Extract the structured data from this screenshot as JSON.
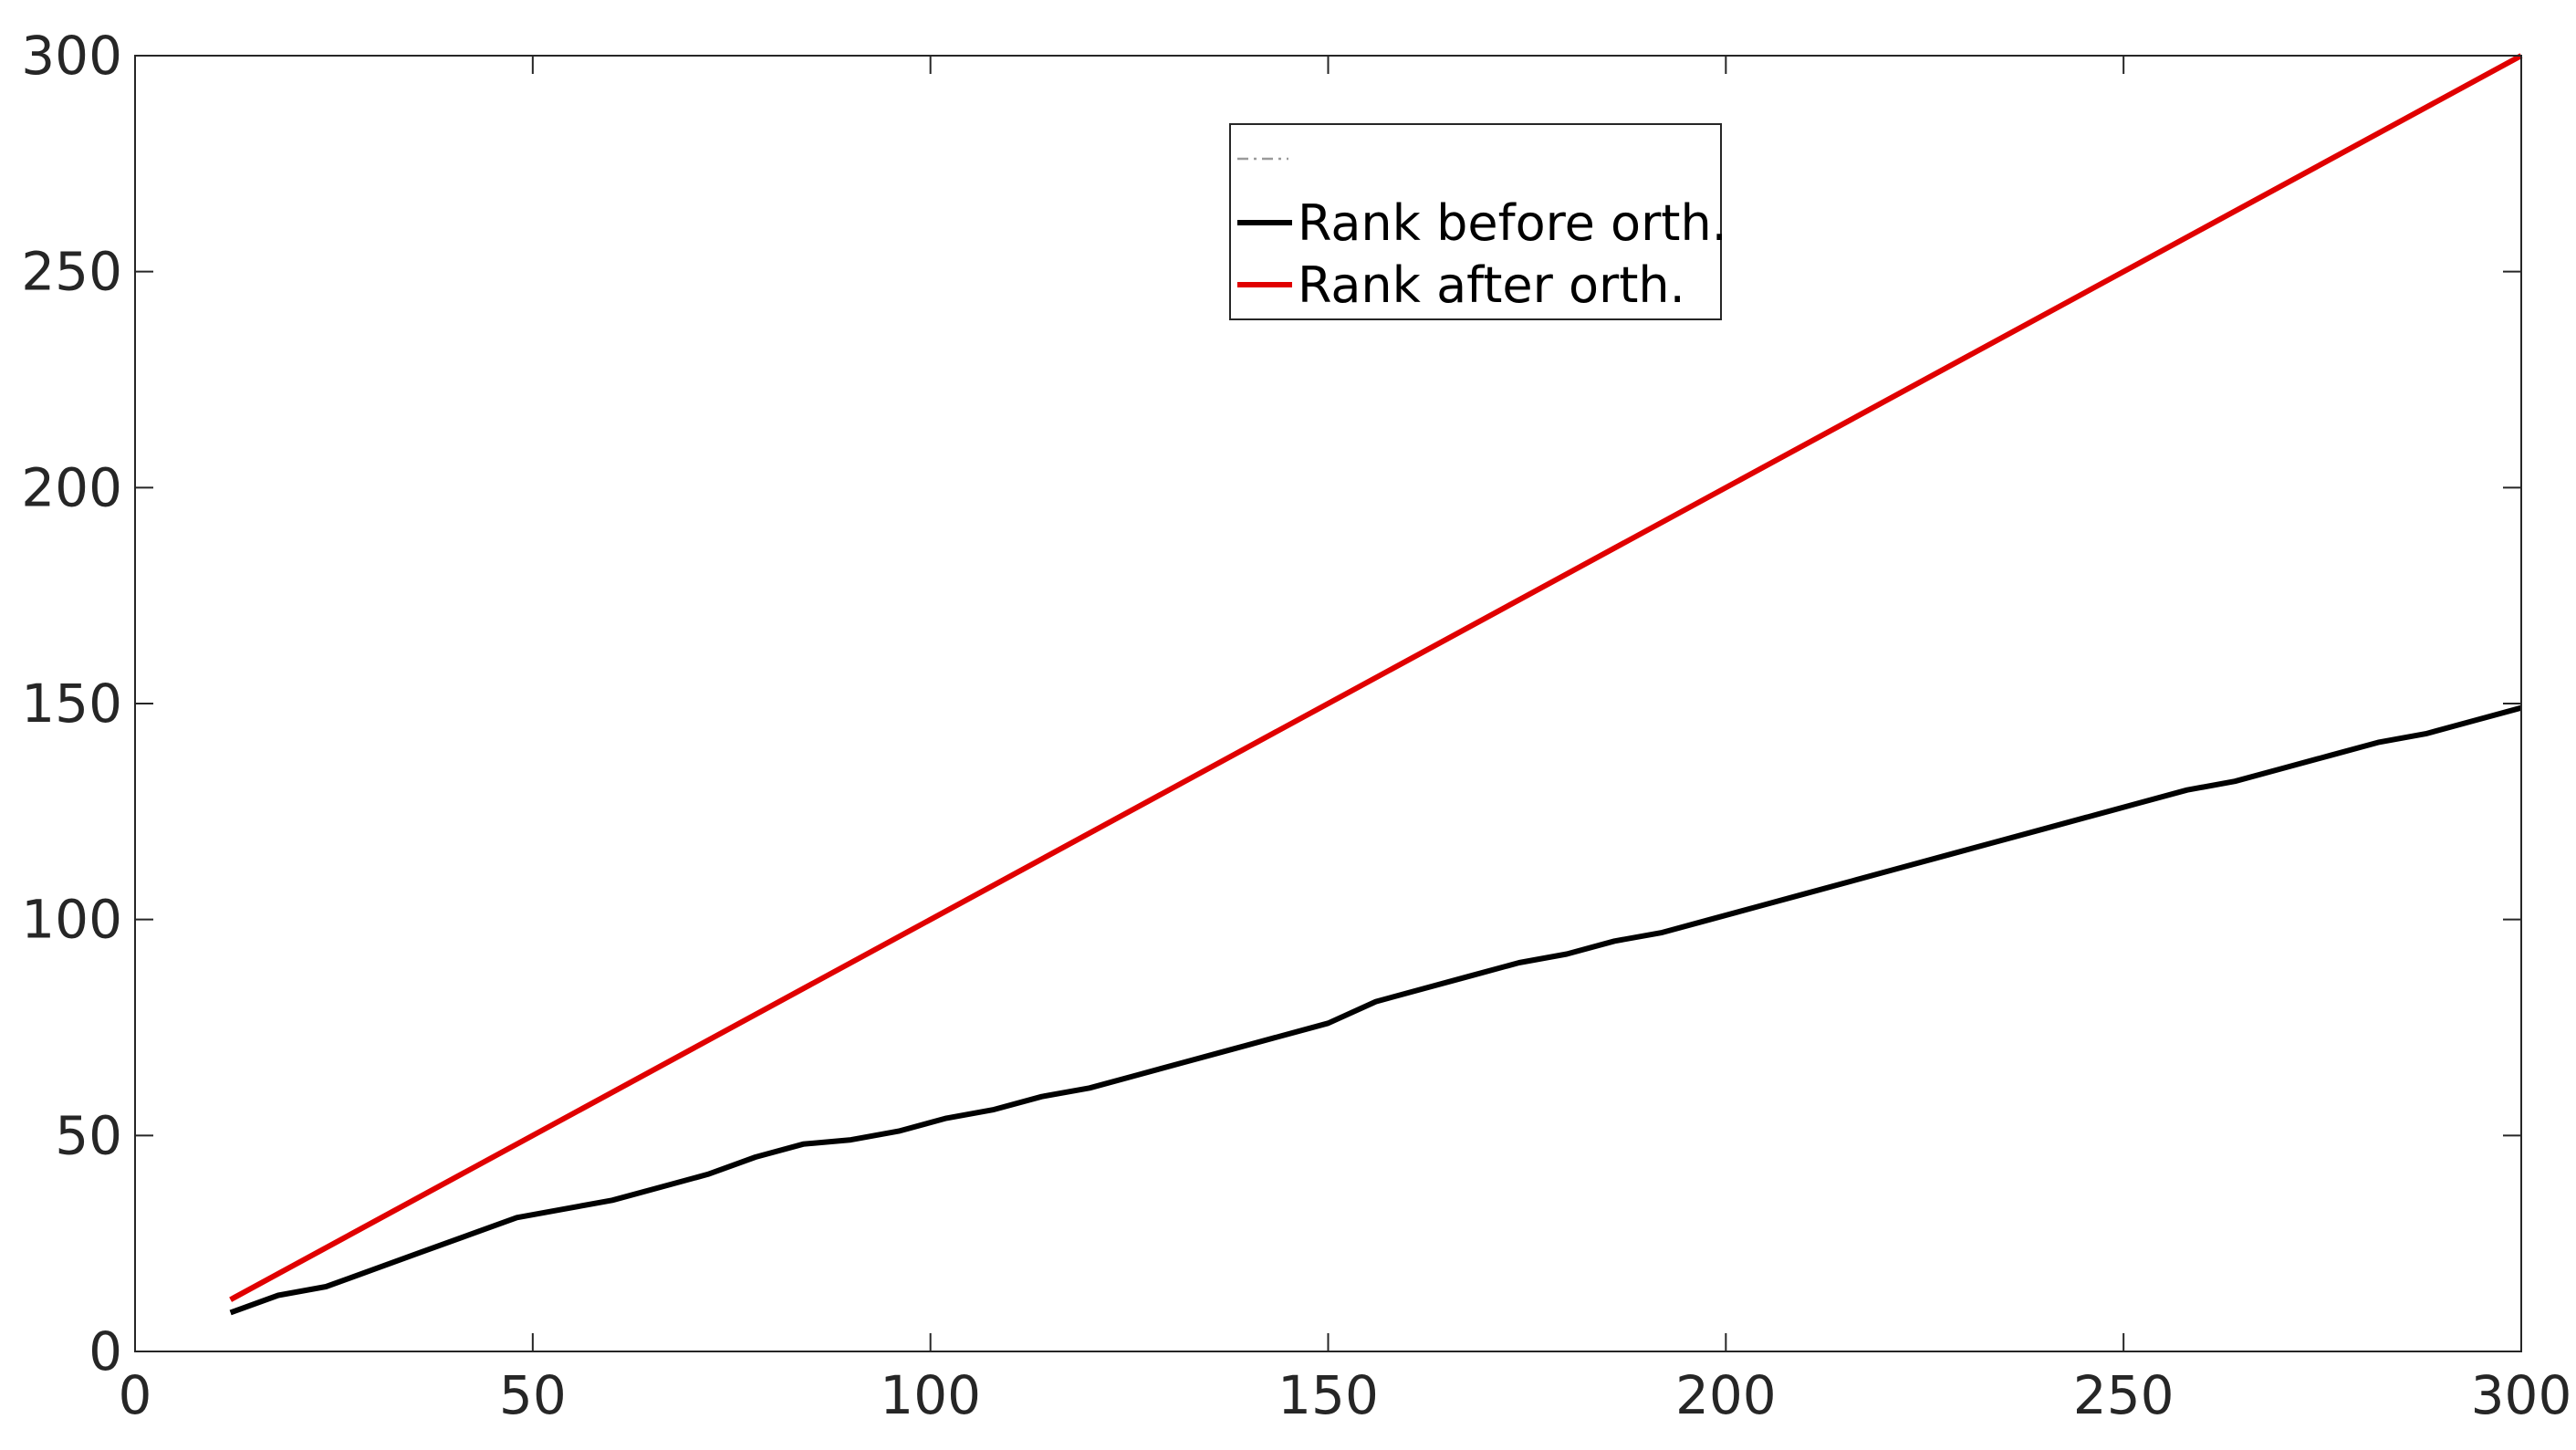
{
  "chart_data": {
    "type": "line",
    "title": "",
    "xlabel": "",
    "ylabel": "",
    "xlim": [
      0,
      300
    ],
    "ylim": [
      0,
      300
    ],
    "xticks": [
      0,
      50,
      100,
      150,
      200,
      250,
      300
    ],
    "yticks": [
      0,
      50,
      100,
      150,
      200,
      250,
      300
    ],
    "xtick_labels": [
      "0",
      "50",
      "100",
      "150",
      "200",
      "250",
      "300"
    ],
    "ytick_labels": [
      "0",
      "50",
      "100",
      "150",
      "200",
      "250",
      "300"
    ],
    "grid": false,
    "legend": {
      "position": "top-center",
      "entries": [
        {
          "label": "",
          "color": "#9a9a9a",
          "style": "dash-dot"
        },
        {
          "label": "Rank before orth.",
          "color": "#000000",
          "style": "solid"
        },
        {
          "label": "Rank after orth.",
          "color": "#e00000",
          "style": "solid"
        }
      ]
    },
    "series": [
      {
        "name": "Rank before orth.",
        "color": "#000000",
        "x": [
          12,
          18,
          24,
          30,
          36,
          42,
          48,
          54,
          60,
          66,
          72,
          78,
          84,
          90,
          96,
          102,
          108,
          114,
          120,
          126,
          132,
          138,
          144,
          150,
          156,
          162,
          168,
          174,
          180,
          186,
          192,
          198,
          204,
          210,
          216,
          222,
          228,
          234,
          240,
          246,
          252,
          258,
          264,
          270,
          276,
          282,
          288,
          294,
          300
        ],
        "y": [
          9,
          13,
          15,
          19,
          23,
          27,
          31,
          33,
          35,
          38,
          41,
          45,
          48,
          49,
          51,
          54,
          56,
          59,
          61,
          64,
          67,
          70,
          73,
          76,
          81,
          84,
          87,
          90,
          92,
          95,
          97,
          100,
          103,
          106,
          109,
          112,
          115,
          118,
          121,
          124,
          127,
          130,
          132,
          135,
          138,
          141,
          143,
          146,
          149
        ]
      },
      {
        "name": "Rank after orth.",
        "color": "#e00000",
        "x": [
          12,
          300
        ],
        "y": [
          12,
          300
        ]
      }
    ]
  }
}
